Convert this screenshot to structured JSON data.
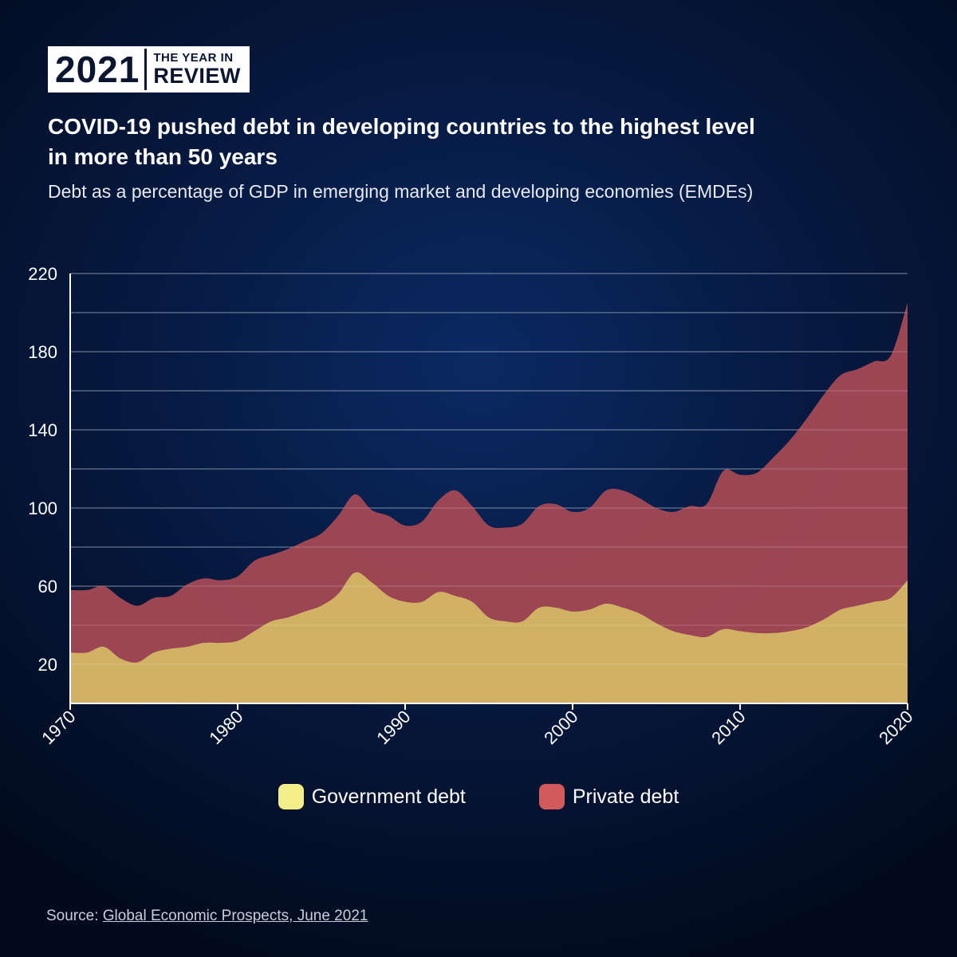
{
  "badge": {
    "year": "2021",
    "line1": "THE YEAR IN",
    "line2": "REVIEW"
  },
  "title_line1": "COVID-19 pushed debt in developing countries to the highest level",
  "title_line2": "in more than 50 years",
  "subtitle": "Debt as a percentage of GDP in emerging market and developing economies (EMDEs)",
  "source": {
    "prefix": "Source: ",
    "link_text": "Global Economic Prospects, June 2021"
  },
  "colors": {
    "government": "#d4b866",
    "government_swatch": "#f4ee88",
    "private": "#a94a56",
    "private_swatch": "#d15b5b"
  },
  "chart_data": {
    "type": "area",
    "stacked": true,
    "title": "COVID-19 pushed debt in developing countries to the highest level in more than 50 years",
    "subtitle": "Debt as a percentage of GDP in emerging market and developing economies (EMDEs)",
    "ylim": [
      0,
      220
    ],
    "y_ticks": [
      20,
      60,
      100,
      140,
      180,
      220
    ],
    "x_ticks": [
      1970,
      1980,
      1990,
      2000,
      2010,
      2020
    ],
    "xlim": [
      1970,
      2020
    ],
    "grid": true,
    "legend_position": "bottom-center",
    "x": [
      1970,
      1971,
      1972,
      1973,
      1974,
      1975,
      1976,
      1977,
      1978,
      1979,
      1980,
      1981,
      1982,
      1983,
      1984,
      1985,
      1986,
      1987,
      1988,
      1989,
      1990,
      1991,
      1992,
      1993,
      1994,
      1995,
      1996,
      1997,
      1998,
      1999,
      2000,
      2001,
      2002,
      2003,
      2004,
      2005,
      2006,
      2007,
      2008,
      2009,
      2010,
      2011,
      2012,
      2013,
      2014,
      2015,
      2016,
      2017,
      2018,
      2019,
      2020
    ],
    "series": [
      {
        "name": "Government debt",
        "values": [
          26,
          26,
          29,
          23,
          21,
          26,
          28,
          29,
          31,
          31,
          32,
          37,
          42,
          44,
          47,
          50,
          56,
          67,
          62,
          55,
          52,
          52,
          57,
          55,
          52,
          44,
          42,
          42,
          49,
          49,
          47,
          48,
          51,
          49,
          46,
          41,
          37,
          35,
          34,
          38,
          37,
          36,
          36,
          37,
          39,
          43,
          48,
          50,
          52,
          54,
          63
        ]
      },
      {
        "name": "Private debt",
        "values": [
          32,
          32,
          31,
          31,
          29,
          28,
          27,
          32,
          33,
          32,
          33,
          36,
          34,
          35,
          36,
          37,
          40,
          40,
          37,
          41,
          39,
          41,
          47,
          54,
          49,
          47,
          48,
          50,
          52,
          53,
          51,
          52,
          58,
          60,
          59,
          59,
          61,
          66,
          68,
          81,
          80,
          82,
          90,
          98,
          107,
          115,
          120,
          121,
          123,
          124,
          142
        ]
      }
    ]
  }
}
